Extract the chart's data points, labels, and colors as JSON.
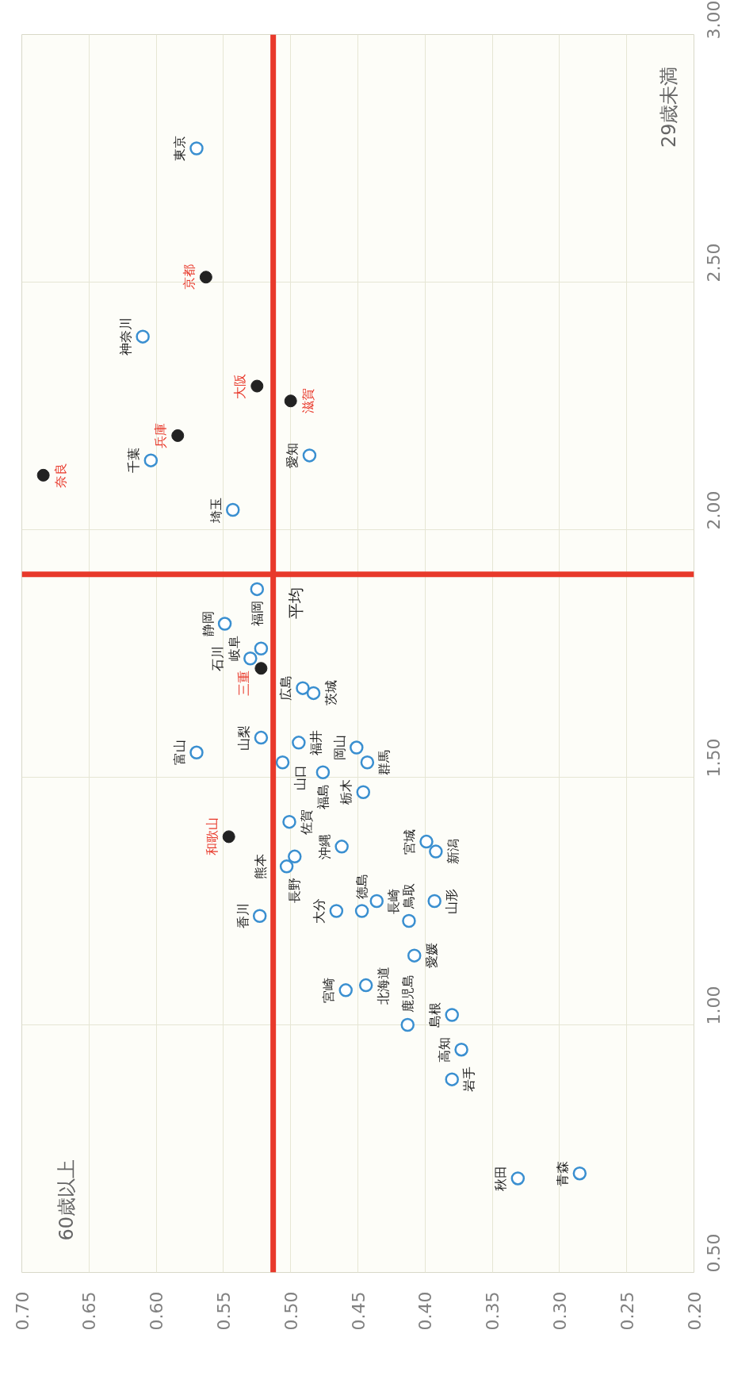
{
  "chart_data": {
    "type": "scatter",
    "marker": "circle",
    "grid": true,
    "xlim": [
      0.7,
      0.2
    ],
    "xticks": [
      {
        "value": 0.7,
        "label": "0.70"
      },
      {
        "value": 0.65,
        "label": "0.65"
      },
      {
        "value": 0.6,
        "label": "0.60"
      },
      {
        "value": 0.55,
        "label": "0.55"
      },
      {
        "value": 0.5,
        "label": "0.50"
      },
      {
        "value": 0.45,
        "label": "0.45"
      },
      {
        "value": 0.4,
        "label": "0.40"
      },
      {
        "value": 0.35,
        "label": "0.35"
      },
      {
        "value": 0.3,
        "label": "0.30"
      },
      {
        "value": 0.25,
        "label": "0.25"
      },
      {
        "value": 0.2,
        "label": "0.20"
      }
    ],
    "ylim": [
      0.5,
      3.0
    ],
    "yticks": [
      {
        "value": 0.5,
        "label": "0.50"
      },
      {
        "value": 1.0,
        "label": "1.00"
      },
      {
        "value": 1.5,
        "label": "1.50"
      },
      {
        "value": 2.0,
        "label": "2.00"
      },
      {
        "value": 2.5,
        "label": "2.50"
      },
      {
        "value": 3.0,
        "label": "3.00"
      }
    ],
    "series": [
      {
        "color": "#222222",
        "x": [
          0.684,
          0.563,
          0.525,
          0.584,
          0.5,
          0.522,
          0.546
        ],
        "values": [
          2.11,
          2.51,
          2.29,
          2.19,
          2.26,
          1.72,
          1.38
        ],
        "value_labels": [
          "奈良",
          "京都",
          "大阪",
          "兵庫",
          "滋賀",
          "三重",
          "和歌山"
        ]
      },
      {
        "color": "#3a8fd0",
        "x": [
          0.57,
          0.61,
          0.604,
          0.486,
          0.543,
          0.525,
          0.549,
          0.522,
          0.53,
          0.491,
          0.483,
          0.57,
          0.522,
          0.494,
          0.506,
          0.501,
          0.462,
          0.497,
          0.503,
          0.523,
          0.451,
          0.443,
          0.446,
          0.436,
          0.399,
          0.392,
          0.393,
          0.38,
          0.459,
          0.373,
          0.38,
          0.331,
          0.285,
          0.466,
          0.447,
          0.444,
          0.408,
          0.413,
          0.412,
          0.476
        ],
        "values": [
          2.77,
          2.39,
          2.14,
          2.15,
          2.04,
          1.88,
          1.81,
          1.76,
          1.74,
          1.68,
          1.67,
          1.55,
          1.58,
          1.57,
          1.53,
          1.41,
          1.36,
          1.34,
          1.32,
          1.22,
          1.56,
          1.53,
          1.47,
          1.25,
          1.37,
          1.35,
          1.25,
          1.02,
          1.07,
          0.95,
          0.89,
          0.69,
          0.7,
          1.23,
          1.23,
          1.08,
          1.14,
          1.0,
          1.21,
          1.51
        ],
        "value_labels": [
          "東京",
          "神奈川",
          "千葉",
          "愛知",
          "埼玉",
          "福岡",
          "静岡",
          "岐阜",
          "石川",
          "広島",
          "茨城",
          "富山",
          "山梨",
          "福井",
          "山口",
          "佐賀",
          "沖縄",
          "長野",
          "熊本",
          "香川",
          "岡山",
          "群馬",
          "栃木",
          "長崎",
          "宮城",
          "新潟",
          "山形",
          "島根",
          "宮崎",
          "高知",
          "岩手",
          "秋田",
          "青森",
          "大分",
          "徳島",
          "北海道",
          "愛媛",
          "鹿児島",
          "鳥取",
          "福島"
        ]
      }
    ],
    "ref_lines": [
      {
        "axis": "x",
        "value": 0.513,
        "color": "#e8392b"
      },
      {
        "axis": "y",
        "value": 1.91,
        "color": "#e8392b"
      }
    ],
    "annotations": [
      "29歳未満",
      "60歳以上",
      {
        "text": "平均",
        "x": 0.513,
        "y": 1.91
      }
    ]
  }
}
